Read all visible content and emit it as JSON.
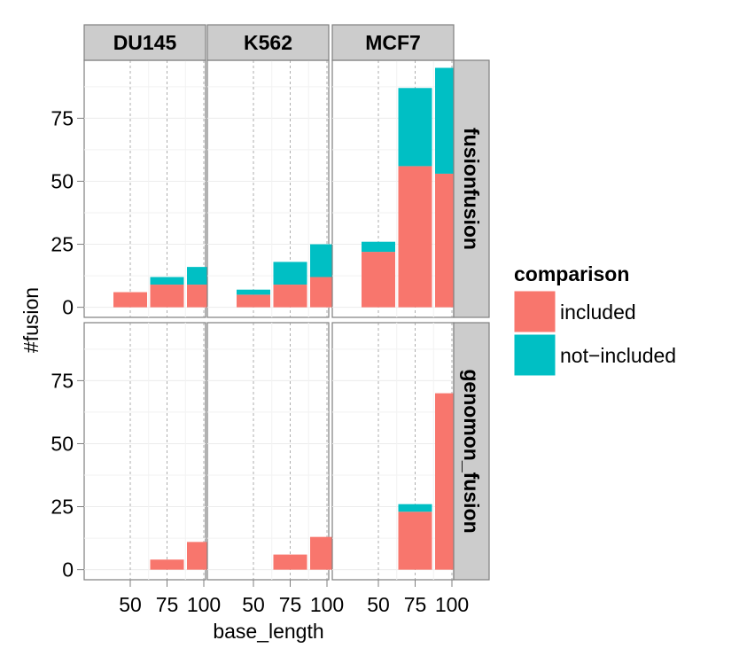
{
  "chart_data": {
    "type": "bar",
    "stacked": true,
    "facet_columns": [
      "DU145",
      "K562",
      "MCF7"
    ],
    "facet_rows": [
      "fusionfusion",
      "genomon_fusion"
    ],
    "x_categories": [
      "50",
      "75",
      "100"
    ],
    "xlabel": "base_length",
    "ylabel": "#fusion",
    "y_ticks": [
      "0",
      "25",
      "50",
      "75"
    ],
    "ylim": [
      -4,
      98
    ],
    "grid": true,
    "legend": {
      "title": "comparison",
      "placement": "right",
      "entries": [
        {
          "name": "included",
          "color": "#F8766D"
        },
        {
          "name": "not−included",
          "color": "#00BFC4"
        }
      ]
    },
    "panels": [
      {
        "row": "fusionfusion",
        "column": "DU145",
        "included": [
          6,
          9,
          9
        ],
        "not_included": [
          0,
          3,
          7
        ]
      },
      {
        "row": "fusionfusion",
        "column": "K562",
        "included": [
          5,
          9,
          12
        ],
        "not_included": [
          2,
          9,
          13
        ]
      },
      {
        "row": "fusionfusion",
        "column": "MCF7",
        "included": [
          22,
          56,
          53
        ],
        "not_included": [
          4,
          31,
          42
        ]
      },
      {
        "row": "genomon_fusion",
        "column": "DU145",
        "included": [
          0,
          4,
          11
        ],
        "not_included": [
          0,
          0,
          0
        ]
      },
      {
        "row": "genomon_fusion",
        "column": "K562",
        "included": [
          0,
          6,
          13
        ],
        "not_included": [
          0,
          0,
          0
        ]
      },
      {
        "row": "genomon_fusion",
        "column": "MCF7",
        "included": [
          0,
          23,
          70
        ],
        "not_included": [
          0,
          3,
          0
        ]
      }
    ]
  }
}
